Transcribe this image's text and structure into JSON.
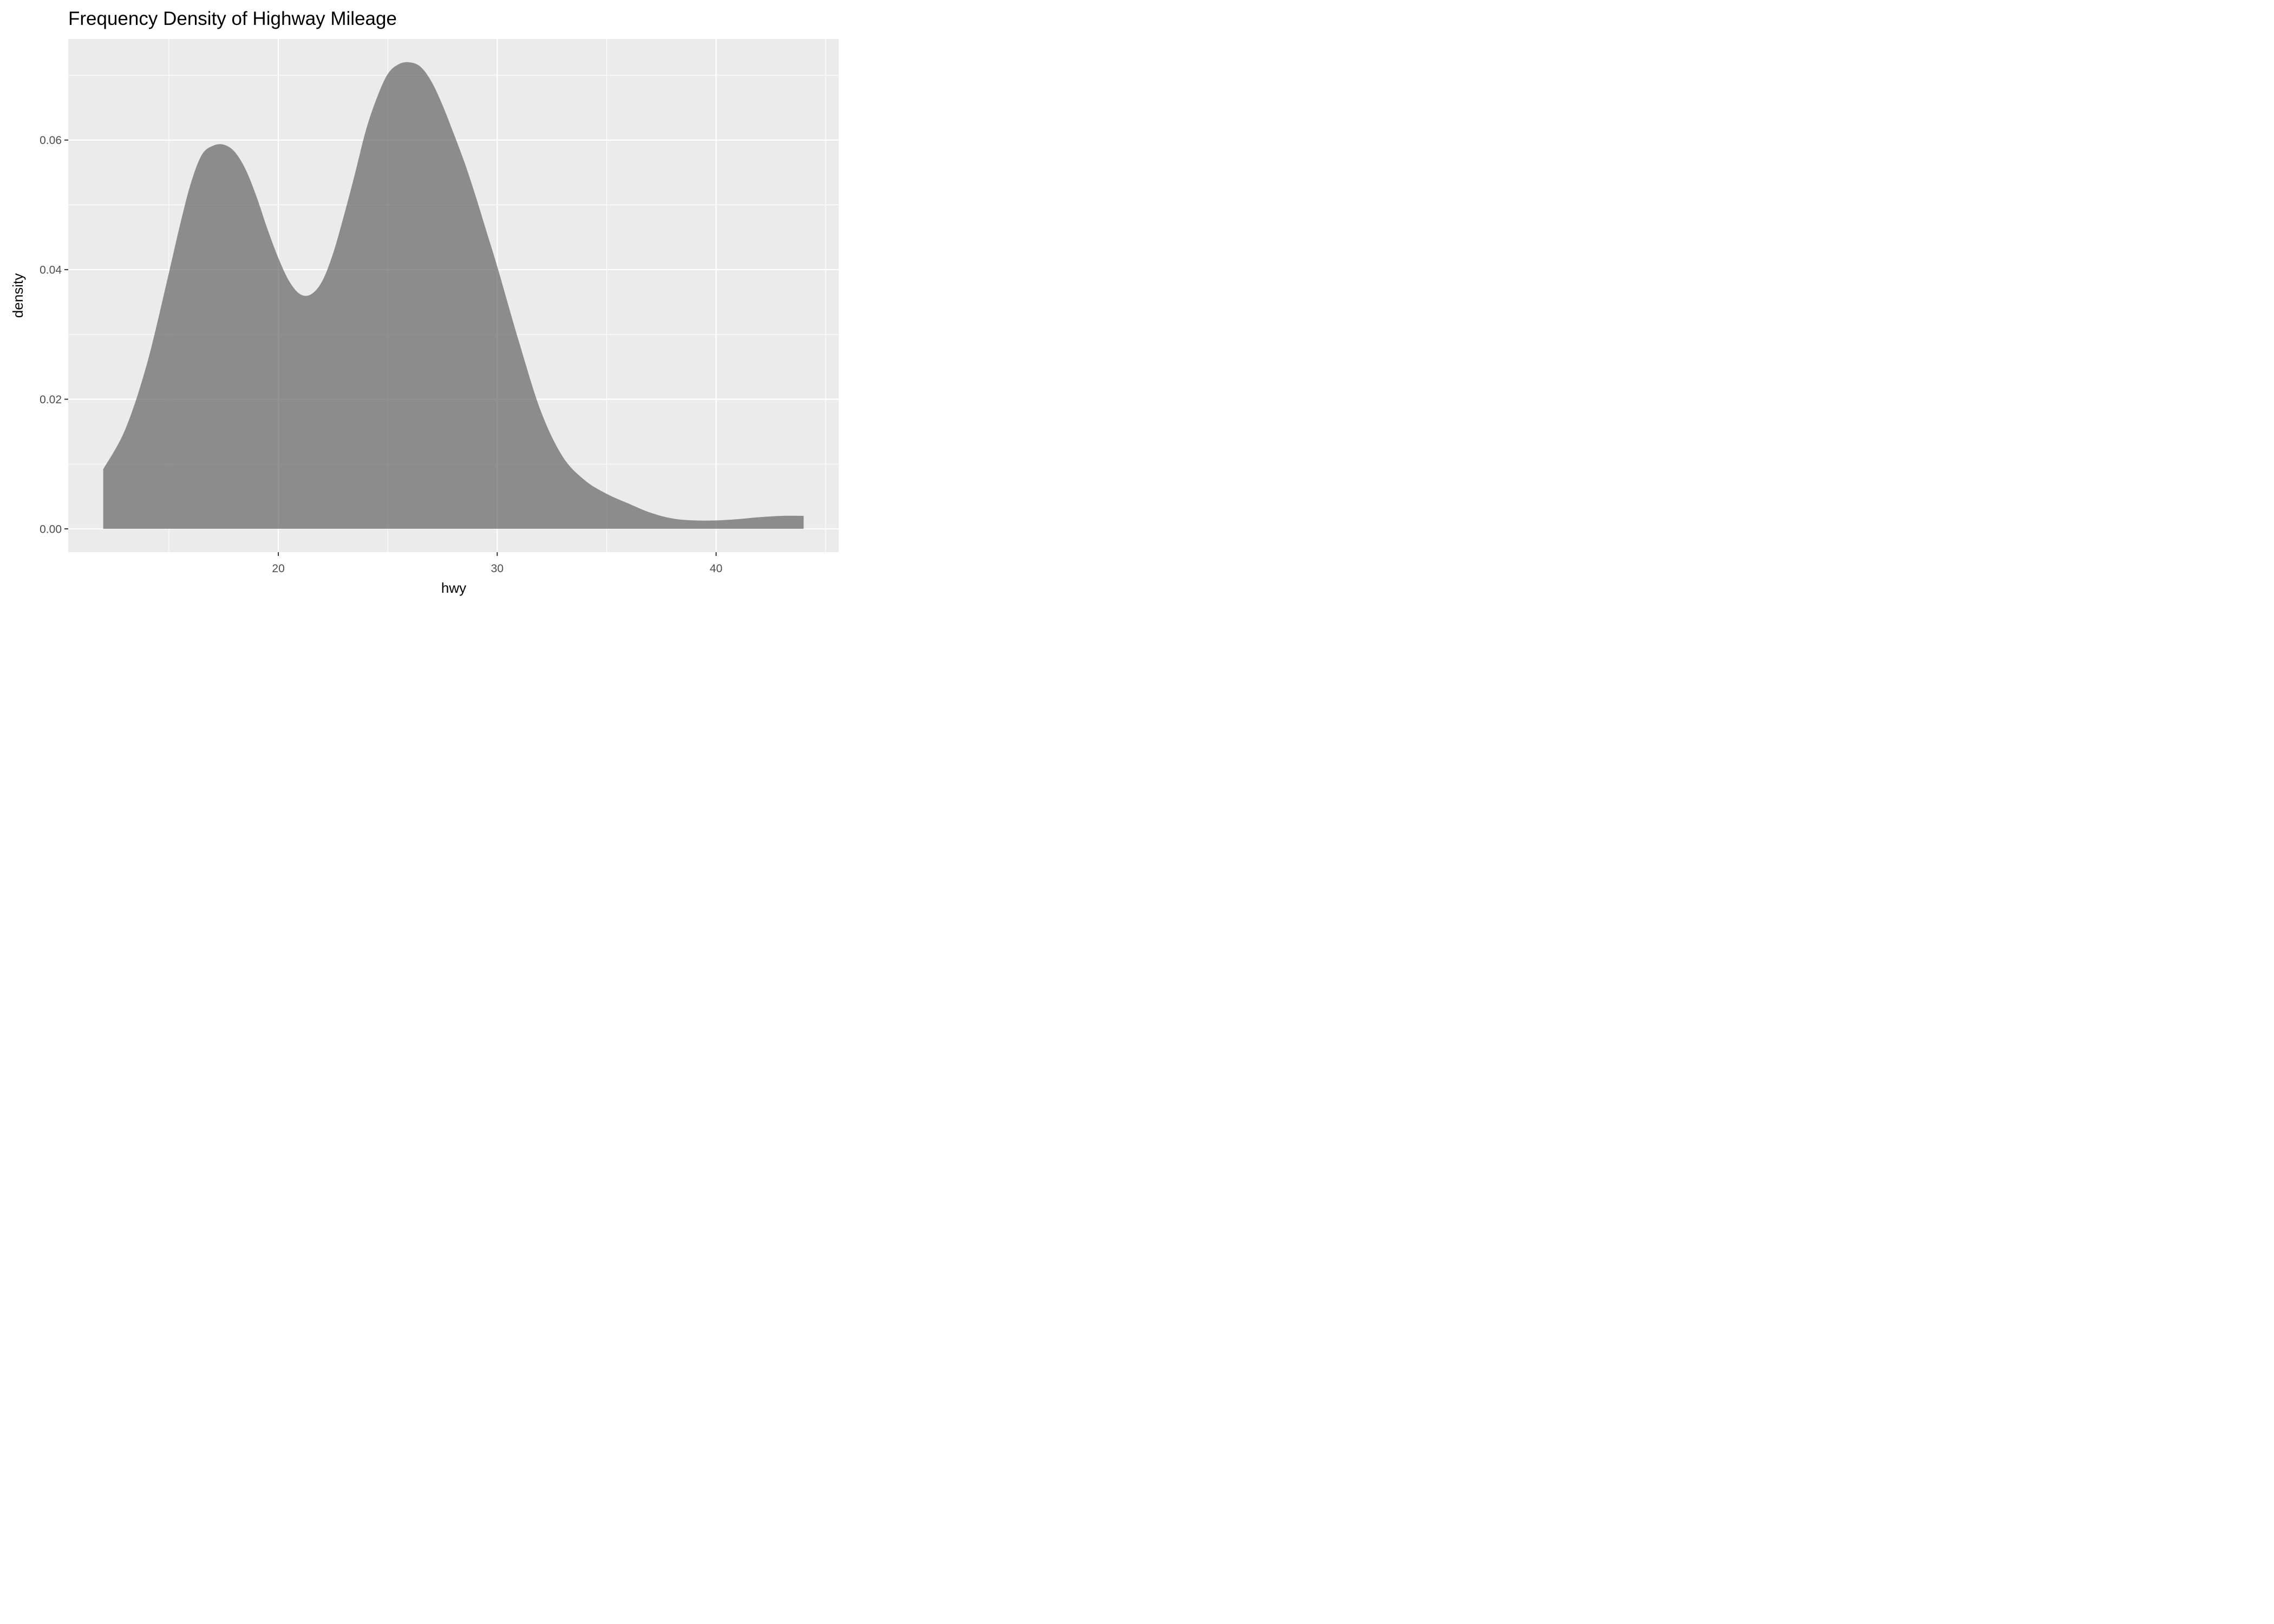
{
  "chart_data": {
    "type": "area",
    "title": "Frequency Density of Highway Mileage",
    "xlabel": "hwy",
    "ylabel": "density",
    "xlim": [
      10.4,
      45.6
    ],
    "ylim": [
      -0.0036,
      0.0756
    ],
    "x_ticks": [
      {
        "value": 20,
        "label": "20"
      },
      {
        "value": 30,
        "label": "30"
      },
      {
        "value": 40,
        "label": "40"
      }
    ],
    "y_ticks": [
      {
        "value": 0.0,
        "label": "0.00"
      },
      {
        "value": 0.02,
        "label": "0.02"
      },
      {
        "value": 0.04,
        "label": "0.04"
      },
      {
        "value": 0.06,
        "label": "0.06"
      }
    ],
    "x_minor": [
      15,
      25,
      35,
      45
    ],
    "y_minor": [
      0.01,
      0.03,
      0.05,
      0.07
    ],
    "grid": true,
    "colors": {
      "panel": "#EBEBEB",
      "grid": "#FFFFFF",
      "fill": "#595959",
      "fill_opacity": 0.65
    },
    "series": [
      {
        "x": [
          12,
          13,
          14,
          15,
          15.5,
          16,
          16.5,
          17,
          17.5,
          18,
          18.5,
          19,
          19.5,
          20,
          20.5,
          21,
          21.5,
          22,
          22.5,
          23,
          23.5,
          24,
          24.5,
          25,
          25.5,
          26,
          26.5,
          27,
          27.5,
          28,
          28.5,
          29,
          29.5,
          30,
          31,
          32,
          33,
          34,
          35,
          36,
          37,
          38,
          39,
          40,
          41,
          42,
          43,
          44
        ],
        "y": [
          0.0092,
          0.0153,
          0.0255,
          0.0395,
          0.0468,
          0.0533,
          0.0577,
          0.0591,
          0.0593,
          0.0582,
          0.0555,
          0.0513,
          0.0463,
          0.0418,
          0.0382,
          0.0362,
          0.0362,
          0.0382,
          0.0425,
          0.0484,
          0.0548,
          0.0615,
          0.0665,
          0.0702,
          0.0717,
          0.072,
          0.0713,
          0.069,
          0.0654,
          0.0611,
          0.0566,
          0.0515,
          0.046,
          0.0405,
          0.0288,
          0.0181,
          0.0111,
          0.0075,
          0.0054,
          0.0039,
          0.0025,
          0.0016,
          0.0013,
          0.0013,
          0.0015,
          0.0018,
          0.002,
          0.002
        ]
      }
    ]
  }
}
